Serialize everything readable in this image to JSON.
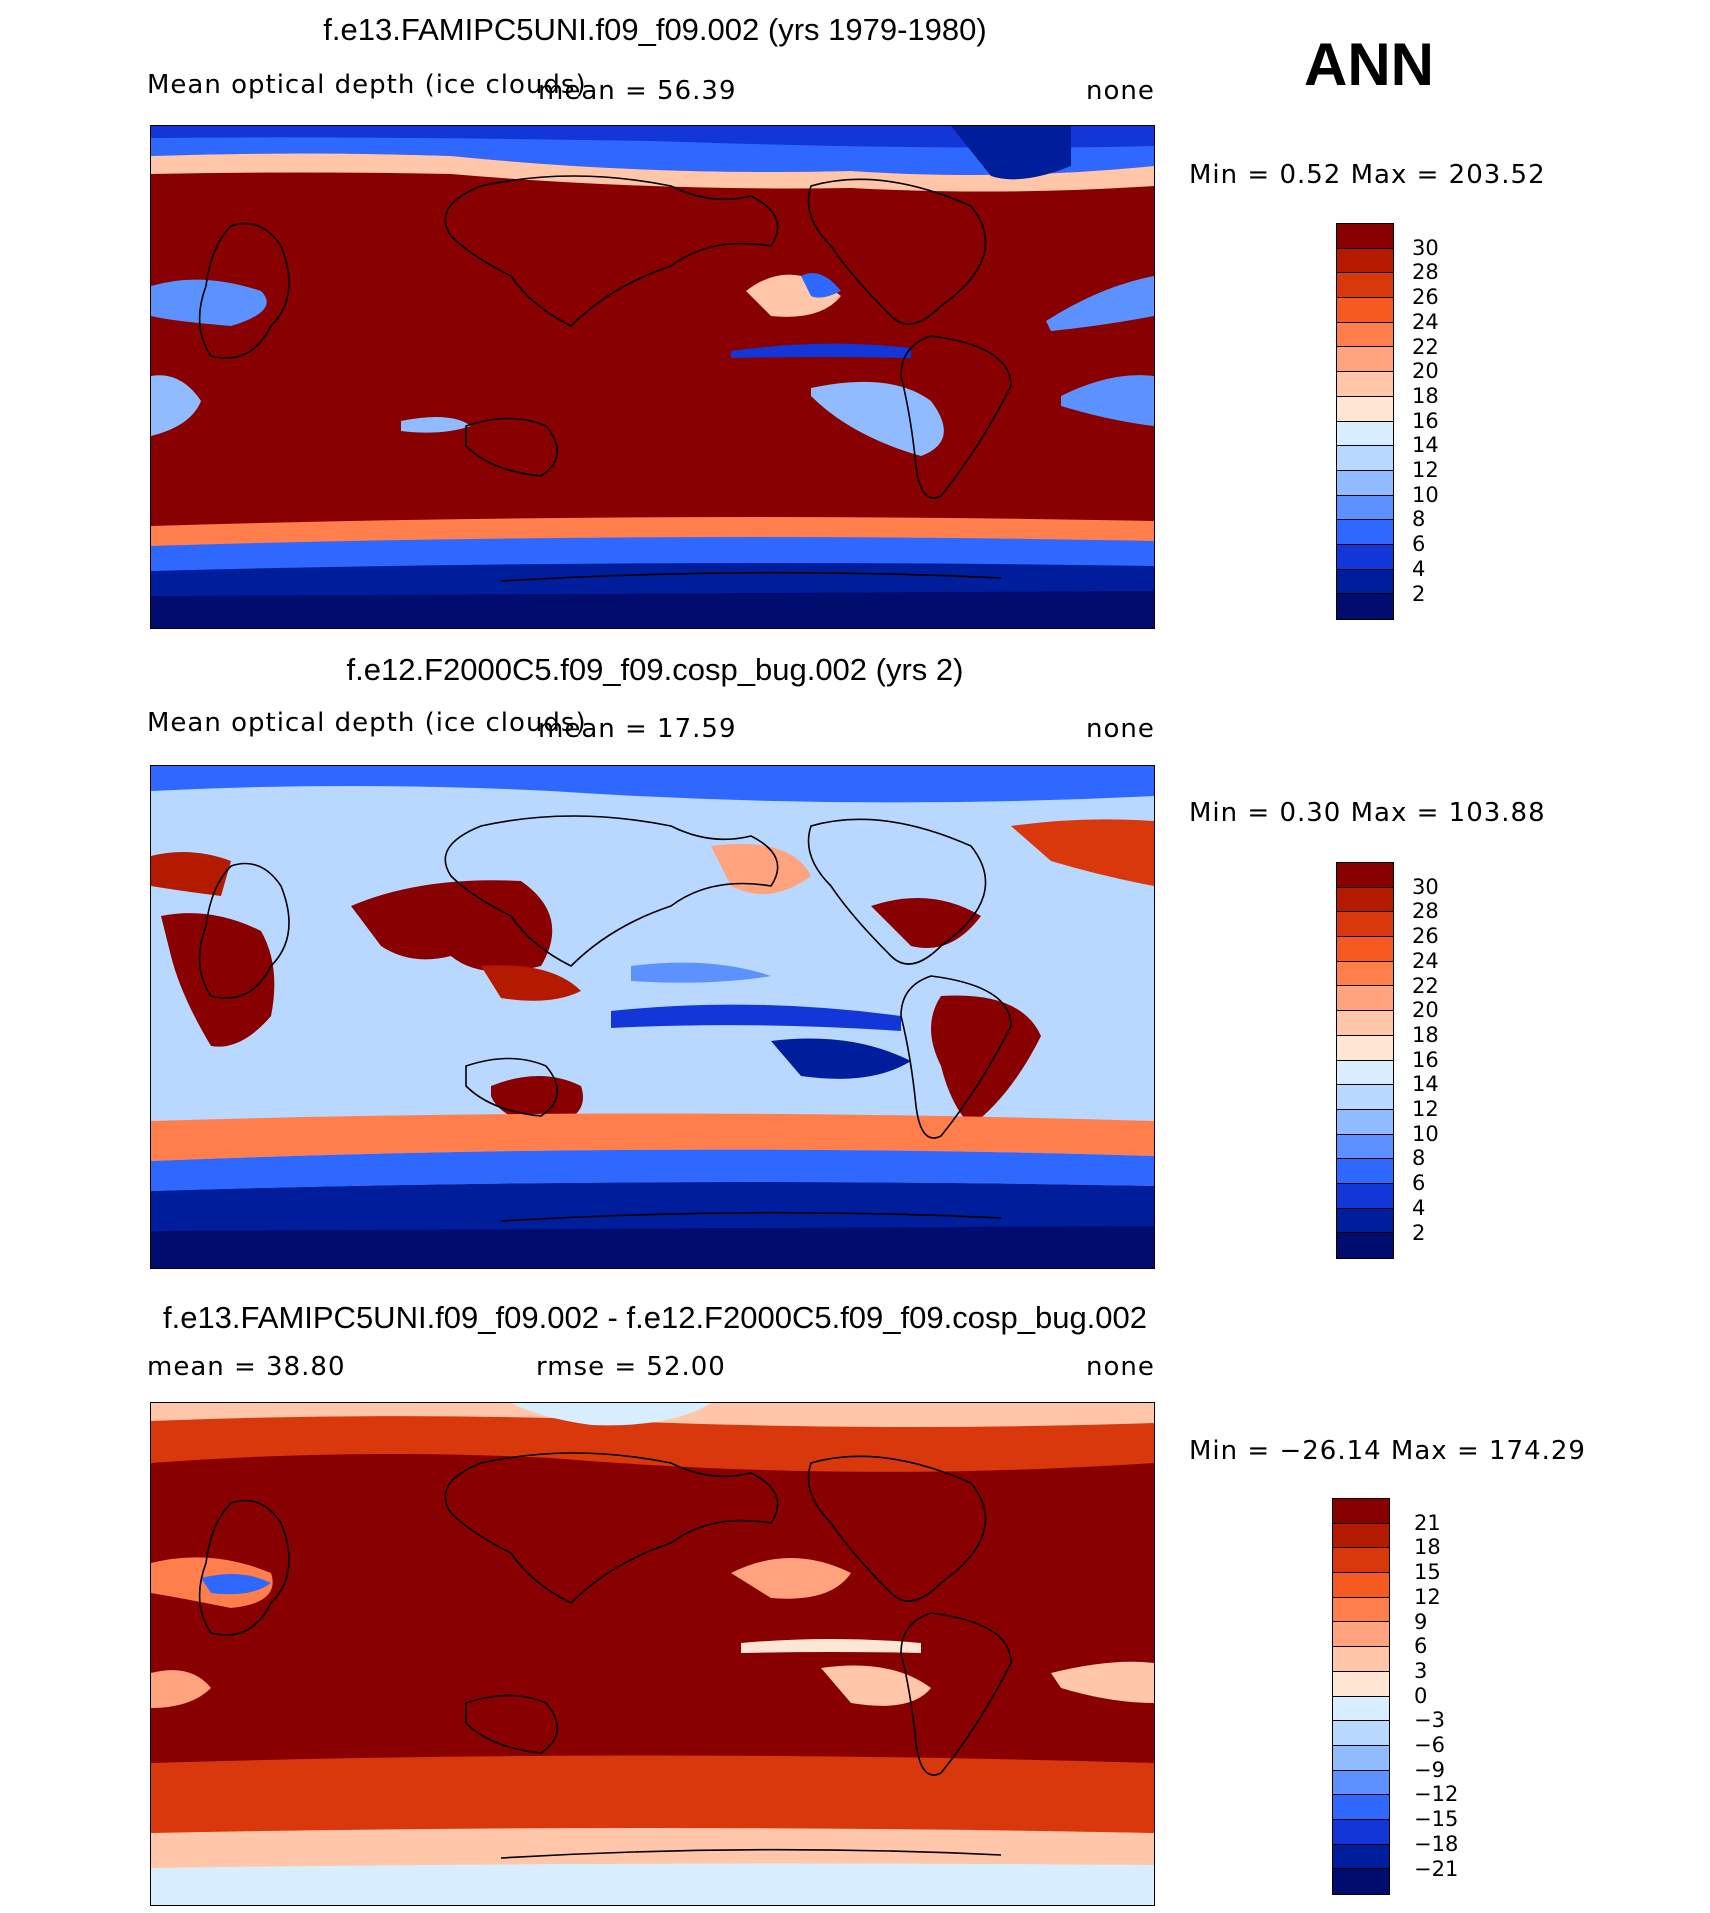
{
  "season": "ANN",
  "panels": [
    {
      "title": "f.e13.FAMIPC5UNI.f09_f09.002 (yrs 1979-1980)",
      "left_label": "Mean optical depth (ice clouds)",
      "stat1": "mean =   56.39",
      "stat2": "",
      "units": "none",
      "minmax": "Min =    0.52 Max = 203.52",
      "levels": [
        "30",
        "28",
        "26",
        "24",
        "22",
        "20",
        "18",
        "16",
        "14",
        "12",
        "10",
        "8",
        "6",
        "4",
        "2"
      ],
      "colors": [
        "#880000",
        "#b31a00",
        "#d9380c",
        "#f55a20",
        "#ff7e4c",
        "#ffa27e",
        "#ffc6aa",
        "#ffe6d4",
        "#d8eeff",
        "#b8d8ff",
        "#90bbff",
        "#5c92ff",
        "#2f68ff",
        "#1236d8",
        "#001d9c",
        "#000c6e"
      ]
    },
    {
      "title": "f.e12.F2000C5.f09_f09.cosp_bug.002 (yrs 2)",
      "left_label": "Mean optical depth (ice clouds)",
      "stat1": "mean =   17.59",
      "stat2": "",
      "units": "none",
      "minmax": "Min =    0.30 Max = 103.88",
      "levels": [
        "30",
        "28",
        "26",
        "24",
        "22",
        "20",
        "18",
        "16",
        "14",
        "12",
        "10",
        "8",
        "6",
        "4",
        "2"
      ],
      "colors": [
        "#880000",
        "#b31a00",
        "#d9380c",
        "#f55a20",
        "#ff7e4c",
        "#ffa27e",
        "#ffc6aa",
        "#ffe6d4",
        "#d8eeff",
        "#b8d8ff",
        "#90bbff",
        "#5c92ff",
        "#2f68ff",
        "#1236d8",
        "#001d9c",
        "#000c6e"
      ]
    },
    {
      "title": "f.e13.FAMIPC5UNI.f09_f09.002 - f.e12.F2000C5.f09_f09.cosp_bug.002",
      "left_label": "mean =   38.80",
      "stat1": "",
      "stat2": "rmse =   52.00",
      "units": "none",
      "minmax": "Min = −26.14 Max = 174.29",
      "levels": [
        "21",
        "18",
        "15",
        "12",
        "9",
        "6",
        "3",
        "0",
        "−3",
        "−6",
        "−9",
        "−12",
        "−15",
        "−18",
        "−21"
      ],
      "colors": [
        "#880000",
        "#b31a00",
        "#d9380c",
        "#f55a20",
        "#ff7e4c",
        "#ffa27e",
        "#ffc6aa",
        "#ffe6d4",
        "#d8eeff",
        "#b8d8ff",
        "#90bbff",
        "#5c92ff",
        "#2f68ff",
        "#1236d8",
        "#001d9c",
        "#000c6e"
      ]
    }
  ]
}
